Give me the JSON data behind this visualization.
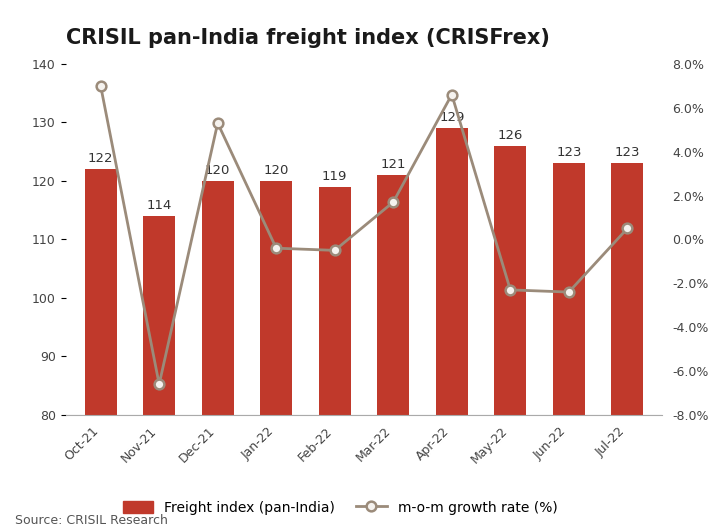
{
  "title": "CRISIL pan-India freight index (CRISFrex)",
  "source": "Source: CRISIL Research",
  "categories": [
    "Oct-21",
    "Nov-21",
    "Dec-21",
    "Jan-22",
    "Feb-22",
    "Mar-22",
    "Apr-22",
    "May-22",
    "Jun-22",
    "Jul-22"
  ],
  "bar_values": [
    122,
    114,
    120,
    120,
    119,
    121,
    129,
    126,
    123,
    123
  ],
  "bar_labels": [
    122,
    114,
    120,
    120,
    119,
    121,
    129,
    126,
    123,
    123
  ],
  "growth_rate": [
    7.0,
    -6.6,
    5.3,
    -0.4,
    -0.5,
    1.7,
    6.6,
    -2.3,
    -2.4,
    0.5
  ],
  "bar_color": "#C0392B",
  "line_color": "#9B8B7A",
  "marker_face": "#f5f2ee",
  "left_ylim": [
    80,
    140
  ],
  "left_yticks": [
    80,
    90,
    100,
    110,
    120,
    130,
    140
  ],
  "right_ylim": [
    -8.0,
    8.0
  ],
  "right_yticks": [
    -8.0,
    -6.0,
    -4.0,
    -2.0,
    0.0,
    2.0,
    4.0,
    6.0,
    8.0
  ],
  "legend_bar_label": "Freight index (pan-India)",
  "legend_line_label": "m-o-m growth rate (%)",
  "title_fontsize": 15,
  "label_fontsize": 10,
  "tick_fontsize": 9,
  "source_fontsize": 9,
  "background_color": "#ffffff"
}
